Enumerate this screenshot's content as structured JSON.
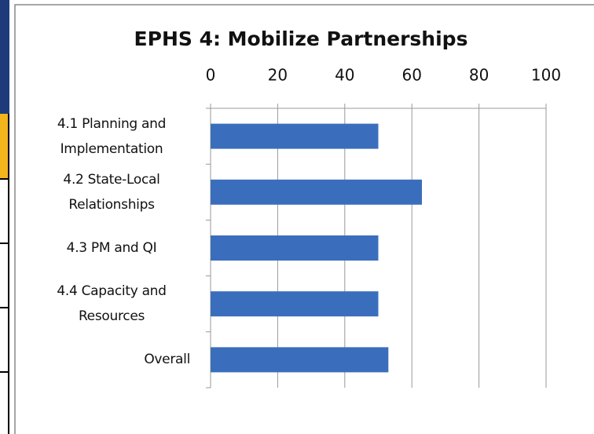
{
  "chart_data": {
    "type": "bar",
    "orientation": "horizontal",
    "title": "EPHS 4: Mobilize Partnerships",
    "categories": [
      "4.1  Planning and Implementation",
      "4.2  State-Local Relationships",
      "4.3  PM and QI",
      "4.4  Capacity and Resources",
      "Overall"
    ],
    "values": [
      50,
      63,
      50,
      50,
      53
    ],
    "color": "#3a6ebd",
    "xlim": [
      0,
      100
    ],
    "xticks": [
      0,
      20,
      40,
      60,
      80,
      100
    ],
    "grid": true
  }
}
